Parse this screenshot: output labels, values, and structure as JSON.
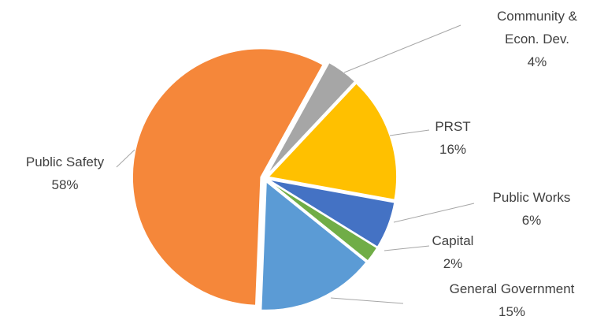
{
  "chart_data": {
    "type": "pie",
    "categories": [
      "Community & Econ. Dev.",
      "PRST",
      "Public Works",
      "Capital",
      "General Government",
      "Public Safety"
    ],
    "values": [
      4,
      16,
      6,
      2,
      15,
      58
    ],
    "value_labels": [
      "4%",
      "16%",
      "6%",
      "2%",
      "15%",
      "58%"
    ],
    "colors": [
      "#a6a6a6",
      "#ffc000",
      "#4472c4",
      "#70ad47",
      "#5b9bd5",
      "#f5873a"
    ]
  }
}
